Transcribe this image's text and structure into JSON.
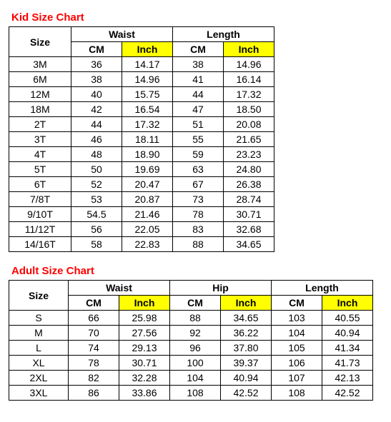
{
  "kid": {
    "title": "Kid Size Chart",
    "col_size": "Size",
    "groups": [
      "Waist",
      "Length"
    ],
    "sub_cm": "CM",
    "sub_in": "Inch",
    "rows": [
      {
        "size": "3M",
        "wcm": "36",
        "win": "14.17",
        "lcm": "38",
        "lin": "14.96"
      },
      {
        "size": "6M",
        "wcm": "38",
        "win": "14.96",
        "lcm": "41",
        "lin": "16.14"
      },
      {
        "size": "12M",
        "wcm": "40",
        "win": "15.75",
        "lcm": "44",
        "lin": "17.32"
      },
      {
        "size": "18M",
        "wcm": "42",
        "win": "16.54",
        "lcm": "47",
        "lin": "18.50"
      },
      {
        "size": "2T",
        "wcm": "44",
        "win": "17.32",
        "lcm": "51",
        "lin": "20.08"
      },
      {
        "size": "3T",
        "wcm": "46",
        "win": "18.11",
        "lcm": "55",
        "lin": "21.65"
      },
      {
        "size": "4T",
        "wcm": "48",
        "win": "18.90",
        "lcm": "59",
        "lin": "23.23"
      },
      {
        "size": "5T",
        "wcm": "50",
        "win": "19.69",
        "lcm": "63",
        "lin": "24.80"
      },
      {
        "size": "6T",
        "wcm": "52",
        "win": "20.47",
        "lcm": "67",
        "lin": "26.38"
      },
      {
        "size": "7/8T",
        "wcm": "53",
        "win": "20.87",
        "lcm": "73",
        "lin": "28.74"
      },
      {
        "size": "9/10T",
        "wcm": "54.5",
        "win": "21.46",
        "lcm": "78",
        "lin": "30.71"
      },
      {
        "size": "11/12T",
        "wcm": "56",
        "win": "22.05",
        "lcm": "83",
        "lin": "32.68"
      },
      {
        "size": "14/16T",
        "wcm": "58",
        "win": "22.83",
        "lcm": "88",
        "lin": "34.65"
      }
    ]
  },
  "adult": {
    "title": "Adult Size Chart",
    "col_size": "Size",
    "groups": [
      "Waist",
      "Hip",
      "Length"
    ],
    "sub_cm": "CM",
    "sub_in": "Inch",
    "rows": [
      {
        "size": "S",
        "wcm": "66",
        "win": "25.98",
        "hcm": "88",
        "hin": "34.65",
        "lcm": "103",
        "lin": "40.55"
      },
      {
        "size": "M",
        "wcm": "70",
        "win": "27.56",
        "hcm": "92",
        "hin": "36.22",
        "lcm": "104",
        "lin": "40.94"
      },
      {
        "size": "L",
        "wcm": "74",
        "win": "29.13",
        "hcm": "96",
        "hin": "37.80",
        "lcm": "105",
        "lin": "41.34"
      },
      {
        "size": "XL",
        "wcm": "78",
        "win": "30.71",
        "hcm": "100",
        "hin": "39.37",
        "lcm": "106",
        "lin": "41.73"
      },
      {
        "size": "2XL",
        "wcm": "82",
        "win": "32.28",
        "hcm": "104",
        "hin": "40.94",
        "lcm": "107",
        "lin": "42.13"
      },
      {
        "size": "3XL",
        "wcm": "86",
        "win": "33.86",
        "hcm": "108",
        "hin": "42.52",
        "lcm": "108",
        "lin": "42.52"
      }
    ]
  },
  "style": {
    "title_color": "#ff0000",
    "highlight_bg": "#ffff00",
    "border_color": "#000000",
    "bg": "#ffffff",
    "font_size_title": 15,
    "font_size_cell": 14
  }
}
